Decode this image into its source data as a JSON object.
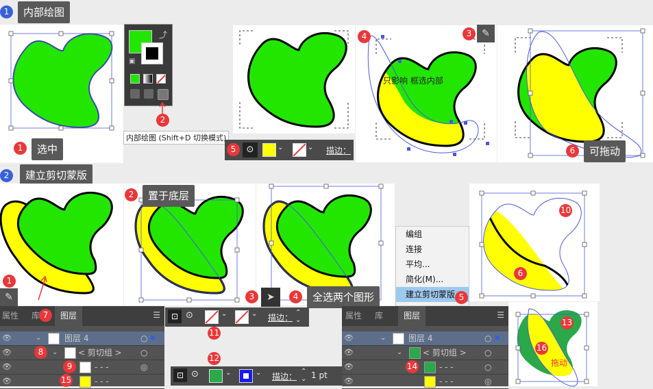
{
  "section1": {
    "number": "1",
    "title": "内部绘图"
  },
  "section2": {
    "number": "2",
    "title": "建立剪切蒙版"
  },
  "s1_labels": {
    "select": "选中",
    "select_num": "1",
    "tooltip": "内部绘图 (Shift+D 切换模式)",
    "tool_num": "2",
    "pencil_num": "3",
    "path_num": "4",
    "inner_note": "只影响 框选内部",
    "draggable": "可拖动",
    "draggable_num": "6",
    "bar_num": "5",
    "stroke_label": "描边："
  },
  "s2_labels": {
    "bring_bottom": "置于底层",
    "bring_bottom_num": "2",
    "pencil_num": "1",
    "select_tool_num": "3",
    "select_both_num": "4",
    "select_both": "全选两个图形",
    "menu_num": "5",
    "shape_num_6": "6",
    "path_num_10": "10",
    "stroke_num_11": "11",
    "stroke_num_12": "12",
    "shape_num_13": "13",
    "shape_num_16": "16",
    "drag": "拖动",
    "stroke_label": "描边：",
    "stroke_value": "1 pt"
  },
  "context_menu": [
    "编组",
    "连接",
    "平均...",
    "简化(M)...",
    "建立剪切蒙版"
  ],
  "layers_left": {
    "tabs": [
      "属性",
      "库",
      "图层"
    ],
    "tab_num": "7",
    "rows": [
      {
        "name": "图层 4"
      },
      {
        "name": "< 剪切组 >",
        "num": "8"
      },
      {
        "name": "- - -",
        "num": "9"
      },
      {
        "name": "- - -",
        "num": "15"
      }
    ]
  },
  "layers_right": {
    "tabs": [
      "属性",
      "库",
      "图层"
    ],
    "rows": [
      {
        "name": "图层 4"
      },
      {
        "name": "< 剪切组 >"
      },
      {
        "name": "- - -",
        "num": "14"
      },
      {
        "name": "- - -"
      }
    ]
  },
  "colors": {
    "green": "#22e600",
    "yellow": "#ffff00",
    "accent_red": "#e8383a",
    "blue": "#3a60d8",
    "dark_green": "#2aa84a"
  }
}
